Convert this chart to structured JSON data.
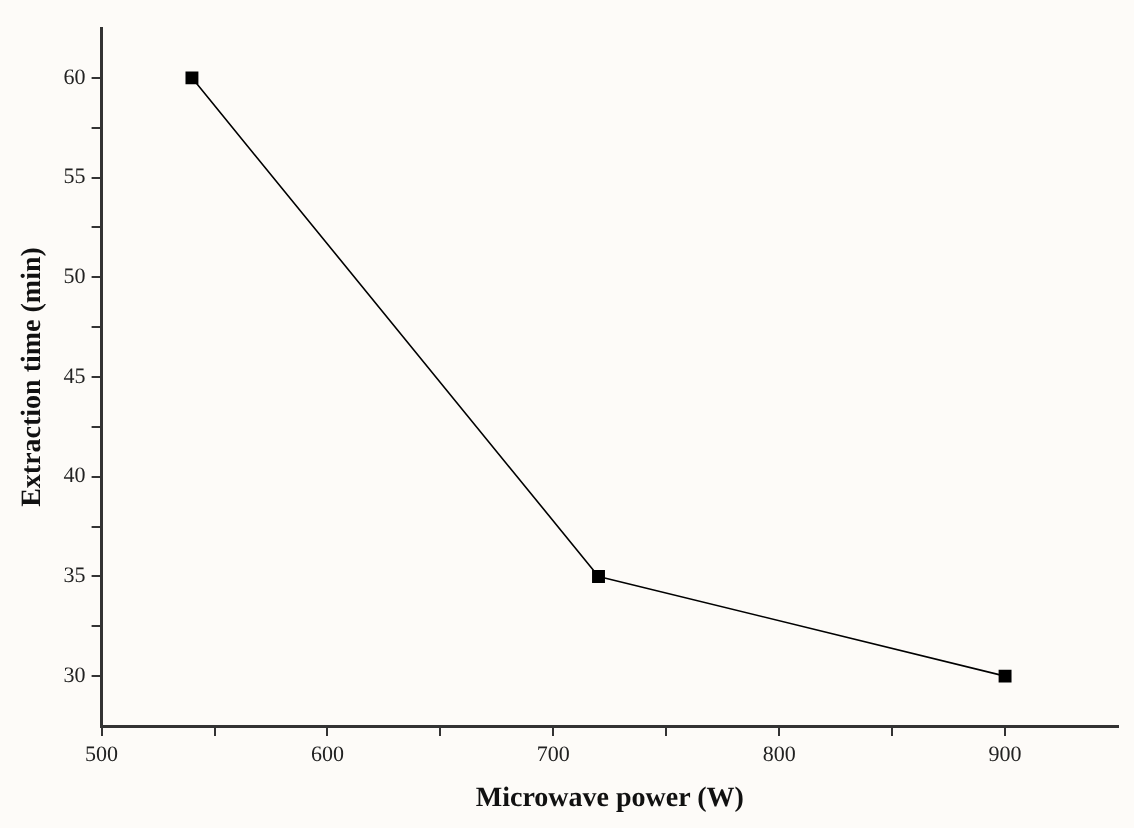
{
  "chart_data": {
    "type": "line",
    "xlabel": "Microwave power (W)",
    "ylabel": "Extraction time (min)",
    "x": [
      540,
      720,
      900
    ],
    "series": [
      {
        "color": "#000000",
        "values": [
          60,
          35,
          30
        ]
      }
    ],
    "xlim": [
      500,
      950
    ],
    "xticks": [
      500,
      {
        "value": 550,
        "label": null
      },
      600,
      {
        "value": 650,
        "label": null
      },
      700,
      {
        "value": 750,
        "label": null
      },
      800,
      {
        "value": 850,
        "label": null
      },
      900
    ],
    "ylim": [
      27.5,
      62.5
    ],
    "yticks": [
      30,
      {
        "value": 32.5,
        "label": null
      },
      35,
      {
        "value": 37.5,
        "label": null
      },
      40,
      {
        "value": 42.5,
        "label": null
      },
      45,
      {
        "value": 47.5,
        "label": null
      },
      50,
      {
        "value": 52.5,
        "label": null
      },
      55,
      {
        "value": 57.5,
        "label": null
      },
      60
    ],
    "marker": "square",
    "line_style": "solid",
    "grid": false,
    "legend": false
  }
}
